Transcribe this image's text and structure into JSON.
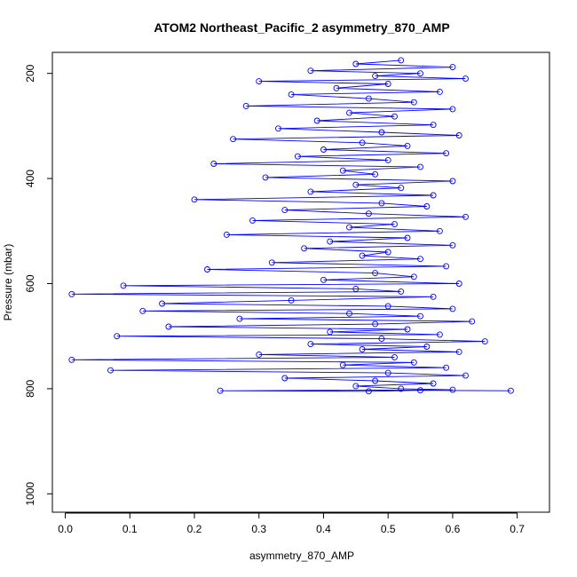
{
  "chart_data": {
    "type": "line",
    "title": "ATOM2 Northeast_Pacific_2 asymmetry_870_AMP",
    "xlabel": "asymmetry_870_AMP",
    "ylabel": "Pressure (mbar)",
    "xlim": [
      -0.02,
      0.75
    ],
    "ylim": [
      1035,
      160
    ],
    "y_inverted": true,
    "x_ticks": [
      0.0,
      0.1,
      0.2,
      0.3,
      0.4,
      0.5,
      0.6,
      0.7
    ],
    "x_tick_labels": [
      "0.0",
      "0.1",
      "0.2",
      "0.3",
      "0.4",
      "0.5",
      "0.6",
      "0.7"
    ],
    "y_ticks": [
      200,
      400,
      600,
      800,
      1000
    ],
    "y_tick_labels": [
      "200",
      "400",
      "600",
      "800",
      "1000"
    ],
    "grid": false,
    "series_color": "#0000ff",
    "marker": "open-circle",
    "series": [
      {
        "values": [
          [
            0.52,
            175
          ],
          [
            0.45,
            182
          ],
          [
            0.6,
            188
          ],
          [
            0.38,
            195
          ],
          [
            0.55,
            200
          ],
          [
            0.48,
            205
          ],
          [
            0.62,
            210
          ],
          [
            0.3,
            215
          ],
          [
            0.5,
            220
          ],
          [
            0.42,
            228
          ],
          [
            0.58,
            235
          ],
          [
            0.35,
            240
          ],
          [
            0.47,
            248
          ],
          [
            0.54,
            255
          ],
          [
            0.28,
            262
          ],
          [
            0.6,
            268
          ],
          [
            0.44,
            275
          ],
          [
            0.51,
            282
          ],
          [
            0.39,
            290
          ],
          [
            0.57,
            298
          ],
          [
            0.33,
            305
          ],
          [
            0.49,
            312
          ],
          [
            0.61,
            318
          ],
          [
            0.26,
            325
          ],
          [
            0.46,
            332
          ],
          [
            0.53,
            338
          ],
          [
            0.4,
            345
          ],
          [
            0.59,
            352
          ],
          [
            0.36,
            358
          ],
          [
            0.5,
            365
          ],
          [
            0.23,
            372
          ],
          [
            0.55,
            378
          ],
          [
            0.43,
            385
          ],
          [
            0.48,
            392
          ],
          [
            0.31,
            398
          ],
          [
            0.6,
            405
          ],
          [
            0.45,
            412
          ],
          [
            0.52,
            418
          ],
          [
            0.38,
            425
          ],
          [
            0.57,
            432
          ],
          [
            0.2,
            440
          ],
          [
            0.49,
            447
          ],
          [
            0.56,
            453
          ],
          [
            0.34,
            460
          ],
          [
            0.47,
            467
          ],
          [
            0.62,
            473
          ],
          [
            0.29,
            480
          ],
          [
            0.51,
            487
          ],
          [
            0.44,
            493
          ],
          [
            0.58,
            500
          ],
          [
            0.25,
            507
          ],
          [
            0.53,
            513
          ],
          [
            0.41,
            520
          ],
          [
            0.6,
            527
          ],
          [
            0.37,
            533
          ],
          [
            0.5,
            540
          ],
          [
            0.46,
            547
          ],
          [
            0.55,
            553
          ],
          [
            0.32,
            560
          ],
          [
            0.59,
            567
          ],
          [
            0.22,
            573
          ],
          [
            0.48,
            580
          ],
          [
            0.54,
            587
          ],
          [
            0.4,
            593
          ],
          [
            0.61,
            600
          ],
          [
            0.09,
            604
          ],
          [
            0.45,
            610
          ],
          [
            0.52,
            615
          ],
          [
            0.01,
            620
          ],
          [
            0.57,
            625
          ],
          [
            0.35,
            632
          ],
          [
            0.15,
            638
          ],
          [
            0.5,
            643
          ],
          [
            0.6,
            648
          ],
          [
            0.12,
            652
          ],
          [
            0.44,
            657
          ],
          [
            0.55,
            662
          ],
          [
            0.27,
            667
          ],
          [
            0.63,
            672
          ],
          [
            0.48,
            677
          ],
          [
            0.16,
            682
          ],
          [
            0.53,
            687
          ],
          [
            0.41,
            692
          ],
          [
            0.58,
            697
          ],
          [
            0.08,
            700
          ],
          [
            0.49,
            705
          ],
          [
            0.65,
            710
          ],
          [
            0.38,
            715
          ],
          [
            0.56,
            720
          ],
          [
            0.46,
            725
          ],
          [
            0.61,
            730
          ],
          [
            0.3,
            735
          ],
          [
            0.51,
            740
          ],
          [
            0.01,
            745
          ],
          [
            0.54,
            750
          ],
          [
            0.43,
            755
          ],
          [
            0.59,
            760
          ],
          [
            0.07,
            765
          ],
          [
            0.5,
            770
          ],
          [
            0.62,
            775
          ],
          [
            0.34,
            780
          ],
          [
            0.48,
            785
          ],
          [
            0.57,
            790
          ],
          [
            0.45,
            795
          ],
          [
            0.52,
            800
          ],
          [
            0.6,
            802
          ],
          [
            0.24,
            804
          ],
          [
            0.47,
            805
          ],
          [
            0.55,
            803
          ],
          [
            0.69,
            804
          ]
        ]
      }
    ]
  }
}
